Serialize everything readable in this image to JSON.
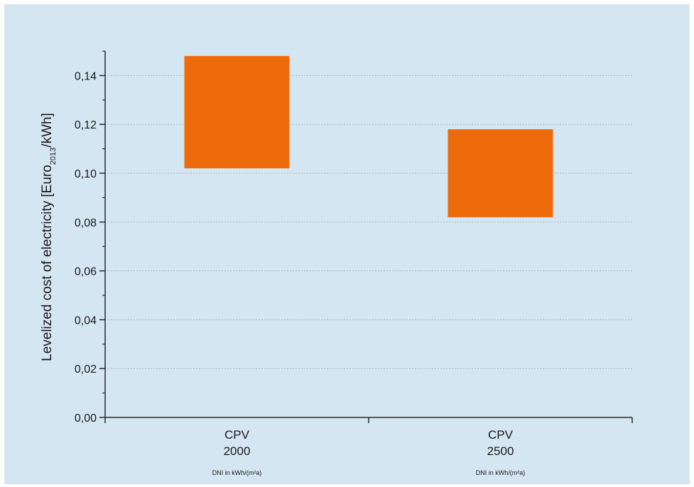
{
  "chart_data": {
    "type": "bar",
    "subtype": "floating-range",
    "categories": [
      "CPV\n2000",
      "CPV\n2500"
    ],
    "category_lines": [
      [
        "CPV",
        "2000"
      ],
      [
        "CPV",
        "2500"
      ]
    ],
    "category_sublabel": "DNI in kWh/(m²a)",
    "ranges": [
      {
        "low": 0.102,
        "high": 0.148
      },
      {
        "low": 0.082,
        "high": 0.118
      }
    ],
    "ylabel_parts": {
      "before": "Levelized cost of electricity [Euro",
      "sub": "2013",
      "after": "/kWh]"
    },
    "ylim": [
      0,
      0.15
    ],
    "yticks": [
      0.0,
      0.02,
      0.04,
      0.06,
      0.08,
      0.1,
      0.12,
      0.14
    ],
    "ytick_labels": [
      "0,00",
      "0,02",
      "0,04",
      "0,06",
      "0,08",
      "0,10",
      "0,12",
      "0,14"
    ],
    "grid": true,
    "legend": "none",
    "colors": {
      "bar": "#ee6b0c",
      "background": "#d5e6f3",
      "grid": "#a9b4bd",
      "axis": "#2a2a2a"
    }
  }
}
